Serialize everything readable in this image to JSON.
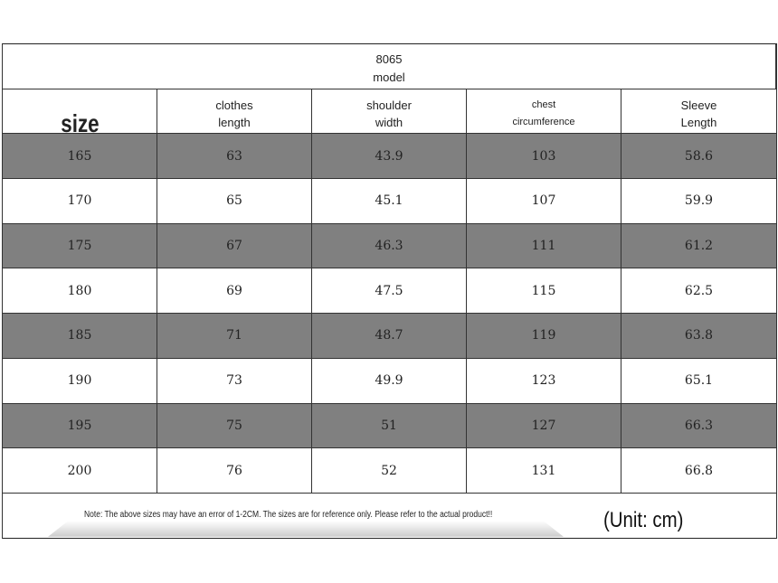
{
  "title": {
    "model_number": "8065",
    "model_label": "model"
  },
  "columns": [
    {
      "line1": "size",
      "line2": ""
    },
    {
      "line1": "clothes",
      "line2": "length"
    },
    {
      "line1": "shoulder",
      "line2": "width"
    },
    {
      "line1": "chest",
      "line2": "circumference"
    },
    {
      "line1": "Sleeve",
      "line2": "Length"
    }
  ],
  "rows": [
    [
      "165",
      "63",
      "43.9",
      "103",
      "58.6"
    ],
    [
      "170",
      "65",
      "45.1",
      "107",
      "59.9"
    ],
    [
      "175",
      "67",
      "46.3",
      "111",
      "61.2"
    ],
    [
      "180",
      "69",
      "47.5",
      "115",
      "62.5"
    ],
    [
      "185",
      "71",
      "48.7",
      "119",
      "63.8"
    ],
    [
      "190",
      "73",
      "49.9",
      "123",
      "65.1"
    ],
    [
      "195",
      "75",
      "51",
      "127",
      "66.3"
    ],
    [
      "200",
      "76",
      "52",
      "131",
      "66.8"
    ]
  ],
  "footer": {
    "note": "Note: The above sizes may have an error of 1-2CM. The sizes are for reference only. Please refer to the actual product!!",
    "unit": "(Unit: cm)"
  },
  "colors": {
    "shaded_row": "#808080"
  }
}
